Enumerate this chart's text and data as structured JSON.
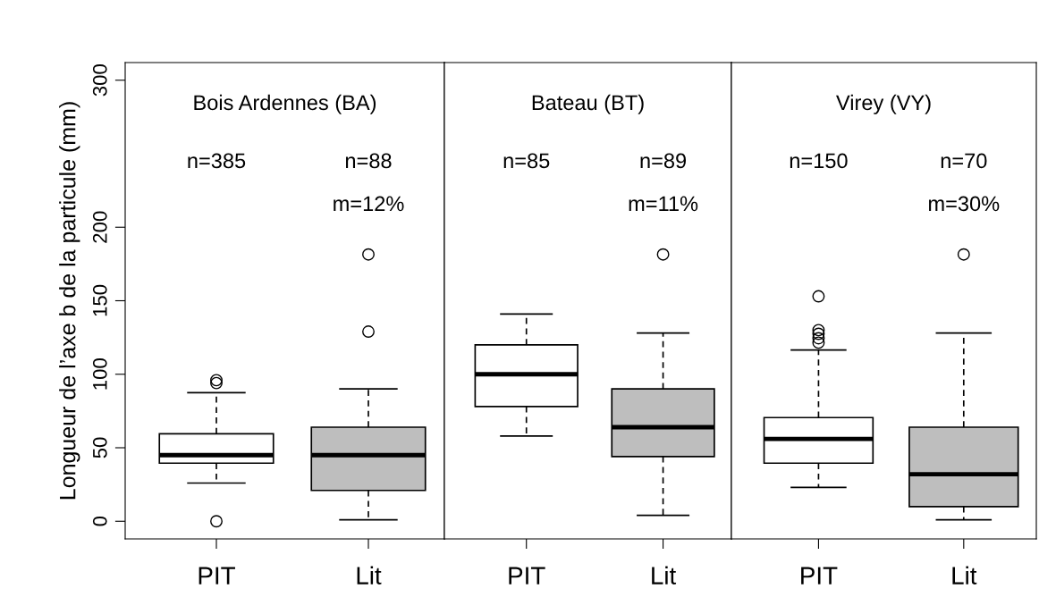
{
  "chart_data": [
    {
      "type": "box",
      "title": "Bois Ardennes (BA)",
      "ylabel": "Longueur de l’axe b de la particule (mm)",
      "categories": [
        "PIT",
        "Lit"
      ],
      "colors": [
        "#ffffff",
        "#bebebe"
      ],
      "ylim": [
        -12,
        312
      ],
      "yticks": [
        0,
        50,
        100,
        150,
        200,
        300
      ],
      "grid": false,
      "boxes": [
        {
          "low": 26,
          "q1": 39.5,
          "median": 45,
          "q3": 59.5,
          "high": 87.5,
          "outliers": [
            96,
            94,
            0
          ]
        },
        {
          "low": 1,
          "q1": 21,
          "median": 45,
          "q3": 64,
          "high": 90,
          "outliers": [
            129,
            181.5
          ]
        }
      ],
      "annotations": [
        "n=385",
        "n=88",
        "m=12%"
      ]
    },
    {
      "type": "box",
      "title": "Bateau (BT)",
      "categories": [
        "PIT",
        "Lit"
      ],
      "colors": [
        "#ffffff",
        "#bebebe"
      ],
      "ylim": [
        -12,
        312
      ],
      "tick_labels": "x",
      "grid": false,
      "boxes": [
        {
          "low": 58,
          "q1": 78,
          "median": 100,
          "q3": 120,
          "high": 141
        },
        {
          "low": 4,
          "q1": 44,
          "median": 64,
          "q3": 90,
          "high": 128,
          "outliers": [
            181.5
          ]
        }
      ],
      "annotations": [
        "n=85",
        "n=89",
        "m=11%"
      ]
    },
    {
      "type": "box",
      "title": "Virey (VY)",
      "categories": [
        "PIT",
        "Lit"
      ],
      "colors": [
        "#ffffff",
        "#bebebe"
      ],
      "ylim": [
        -12,
        312
      ],
      "tick_labels": "x",
      "grid": false,
      "boxes": [
        {
          "low": 23,
          "q1": 39.5,
          "median": 56,
          "q3": 70.5,
          "high": 116.5,
          "outliers": [
            153,
            130,
            127.5,
            124.5,
            121.5
          ]
        },
        {
          "low": 1,
          "q1": 10,
          "median": 32,
          "q3": 64,
          "high": 128,
          "outliers": [
            181.5
          ]
        }
      ],
      "annotations": [
        "n=150",
        "n=70",
        "m=30%"
      ]
    }
  ]
}
